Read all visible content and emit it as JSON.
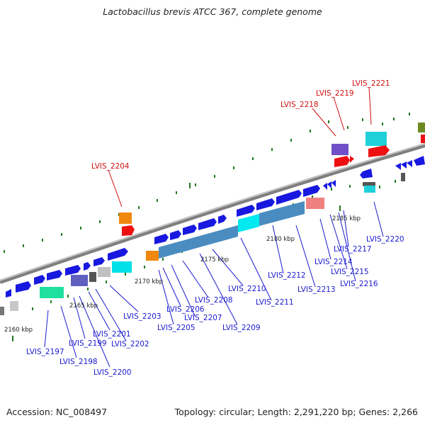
{
  "title": "Lactobacillus brevis ATCC 367, complete genome",
  "footer": {
    "accession": "Accession: NC_008497",
    "stats": "Topology: circular; Length: 2,291,220 bp; Genes: 2,266"
  },
  "kbp_labels": [
    "2160 kbp",
    "2165 kbp",
    "2170 kbp",
    "2175 kbp",
    "2180 kbp",
    "2185 kbp"
  ],
  "highlighted_genes": [
    "LVIS_2204",
    "LVIS_2218",
    "LVIS_2219",
    "LVIS_2221"
  ],
  "gene_labels": [
    "LVIS_2197",
    "LVIS_2198",
    "LVIS_2199",
    "LVIS_2200",
    "LVIS_2201",
    "LVIS_2202",
    "LVIS_2203",
    "LVIS_2205",
    "LVIS_2206",
    "LVIS_2207",
    "LVIS_2208",
    "LVIS_2209",
    "LVIS_2210",
    "LVIS_2211",
    "LVIS_2212",
    "LVIS_2213",
    "LVIS_2214",
    "LVIS_2215",
    "LVIS_2216",
    "LVIS_2217",
    "LVIS_2220"
  ],
  "colors": {
    "gene_blue": "#1818e0",
    "label_blue": "#1a1ad0",
    "label_red": "#d01010",
    "backbone": "#888888",
    "tick": "#1f7a1f"
  }
}
